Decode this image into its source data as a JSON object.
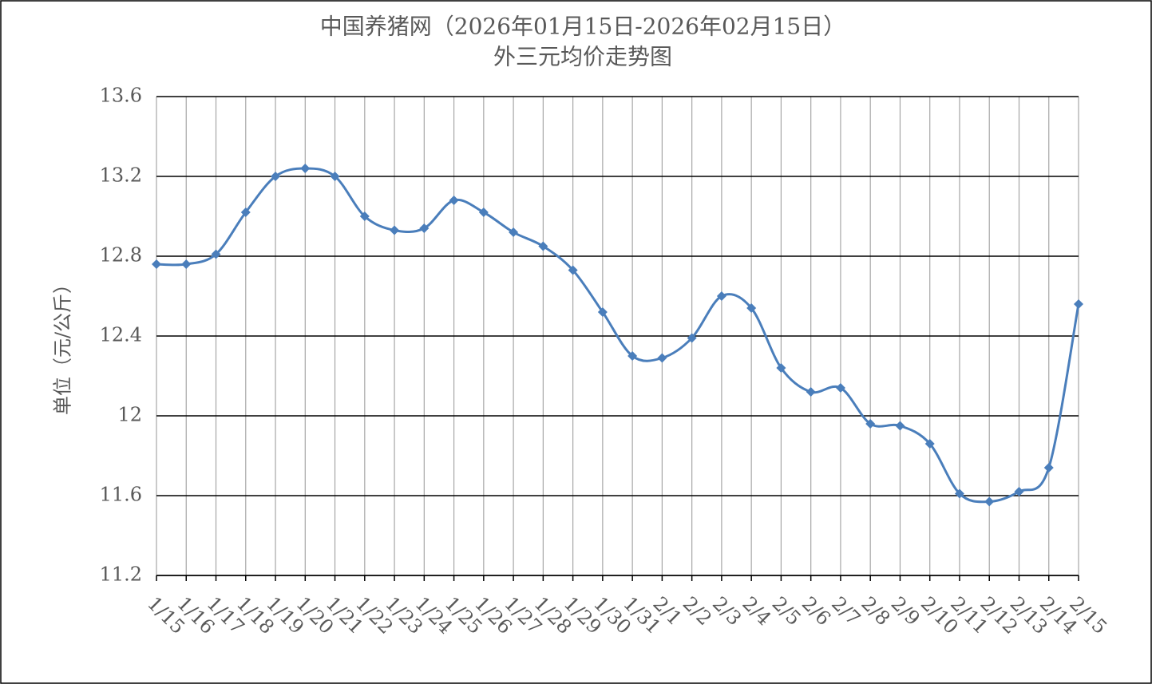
{
  "chart_data": {
    "type": "line",
    "title": "中国养猪网（2026年01月15日-2026年02月15日）",
    "subtitle": "外三元均价走势图",
    "y_label": "单位（元/公斤）",
    "categories": [
      "1/15",
      "1/16",
      "1/17",
      "1/18",
      "1/19",
      "1/20",
      "1/21",
      "1/22",
      "1/23",
      "1/24",
      "1/25",
      "1/26",
      "1/27",
      "1/28",
      "1/29",
      "1/30",
      "1/31",
      "2/1",
      "2/2",
      "2/3",
      "2/4",
      "2/5",
      "2/6",
      "2/7",
      "2/8",
      "2/9",
      "2/10",
      "2/11",
      "2/12",
      "2/13",
      "2/14",
      "2/15"
    ],
    "values": [
      12.76,
      12.76,
      12.81,
      13.02,
      13.2,
      13.24,
      13.2,
      13.0,
      12.93,
      12.94,
      13.08,
      13.02,
      12.92,
      12.85,
      12.73,
      12.52,
      12.3,
      12.29,
      12.39,
      12.6,
      12.54,
      12.24,
      12.12,
      12.14,
      11.96,
      11.95,
      11.86,
      11.61,
      11.57,
      11.62,
      11.74,
      12.56
    ],
    "color": "#4a7ebb",
    "ylim": [
      11.2,
      13.6
    ],
    "yticks": [
      11.2,
      11.6,
      12,
      12.4,
      12.8,
      13.2,
      13.6
    ],
    "grid": true,
    "smooth": true
  }
}
